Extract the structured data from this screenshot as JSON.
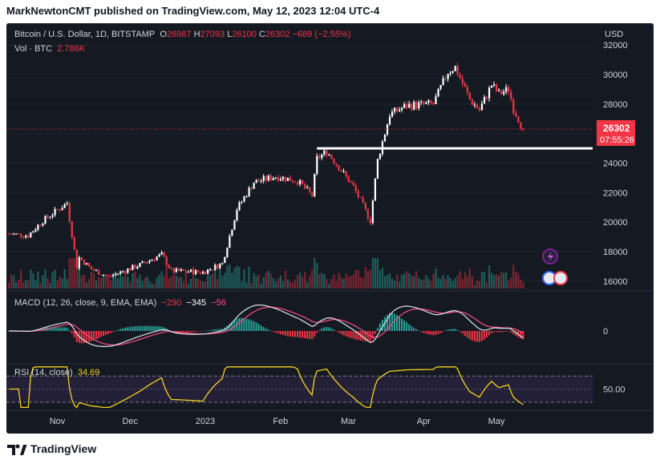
{
  "header": {
    "publisher_line": "MarkNewtonCMT published on TradingView.com, May 12, 2023 12:04 UTC-4"
  },
  "legend": {
    "symbol": "Bitcoin / U.S. Dollar, 1D, BITSTAMP",
    "open_label": "O",
    "open": "26987",
    "high_label": "H",
    "high": "27093",
    "low_label": "L",
    "low": "26100",
    "close_label": "C",
    "close": "26302",
    "change": "−689 (−2.55%)",
    "vol_label": "Vol · BTC",
    "vol_value": "2.786K"
  },
  "price_axis": {
    "currency": "USD",
    "last_price": "26302",
    "countdown": "07:55:26"
  },
  "macd": {
    "label": "MACD (12, 26, close, 9, EMA, EMA)",
    "histogram": "−290",
    "macd": "−345",
    "signal": "−56",
    "axis_zero": "0"
  },
  "rsi": {
    "label": "RSI (14, close)",
    "value": "34.69",
    "axis_50": "50.00"
  },
  "time_axis": [
    "Nov",
    "Dec",
    "2023",
    "Feb",
    "Mar",
    "Apr",
    "May"
  ],
  "footer": {
    "brand": "TradingView"
  },
  "colors": {
    "background": "#151922",
    "up": "#ffffff",
    "down": "#f23645",
    "macd_line": "#e0e3eb",
    "signal_line": "#ff4d88",
    "rsi_line": "#f7d11f",
    "rsi_band": "#2a2440"
  },
  "chart_data": {
    "type": "candlestick",
    "y_range": [
      15500,
      32500
    ],
    "y_ticks": [
      16000,
      18000,
      20000,
      22000,
      24000,
      26000,
      28000,
      30000,
      32000
    ],
    "horizontal_line": 25000,
    "last_close": 26302,
    "close_path": [
      {
        "date": "2022-10-12",
        "close": 19200
      },
      {
        "date": "2022-10-20",
        "close": 19100
      },
      {
        "date": "2022-10-26",
        "close": 20100
      },
      {
        "date": "2022-11-05",
        "close": 21300
      },
      {
        "date": "2022-11-09",
        "close": 17000
      },
      {
        "date": "2022-11-10",
        "close": 17600
      },
      {
        "date": "2022-11-15",
        "close": 16800
      },
      {
        "date": "2022-11-22",
        "close": 16300
      },
      {
        "date": "2022-12-05",
        "close": 17100
      },
      {
        "date": "2022-12-14",
        "close": 17800
      },
      {
        "date": "2022-12-18",
        "close": 16700
      },
      {
        "date": "2022-12-31",
        "close": 16600
      },
      {
        "date": "2023-01-08",
        "close": 17200
      },
      {
        "date": "2023-01-14",
        "close": 20900
      },
      {
        "date": "2023-01-21",
        "close": 22700
      },
      {
        "date": "2023-01-30",
        "close": 23100
      },
      {
        "date": "2023-02-08",
        "close": 22800
      },
      {
        "date": "2023-02-14",
        "close": 21800
      },
      {
        "date": "2023-02-16",
        "close": 24300
      },
      {
        "date": "2023-02-20",
        "close": 24800
      },
      {
        "date": "2023-02-26",
        "close": 23500
      },
      {
        "date": "2023-03-03",
        "close": 22400
      },
      {
        "date": "2023-03-10",
        "close": 20100
      },
      {
        "date": "2023-03-13",
        "close": 24200
      },
      {
        "date": "2023-03-18",
        "close": 27300
      },
      {
        "date": "2023-03-25",
        "close": 27900
      },
      {
        "date": "2023-04-05",
        "close": 28000
      },
      {
        "date": "2023-04-11",
        "close": 30200
      },
      {
        "date": "2023-04-14",
        "close": 30500
      },
      {
        "date": "2023-04-20",
        "close": 28300
      },
      {
        "date": "2023-04-24",
        "close": 27600
      },
      {
        "date": "2023-04-29",
        "close": 29300
      },
      {
        "date": "2023-05-02",
        "close": 28700
      },
      {
        "date": "2023-05-06",
        "close": 29000
      },
      {
        "date": "2023-05-08",
        "close": 27700
      },
      {
        "date": "2023-05-12",
        "close": 26302
      }
    ],
    "rsi_levels": [
      30,
      50,
      70
    ]
  }
}
